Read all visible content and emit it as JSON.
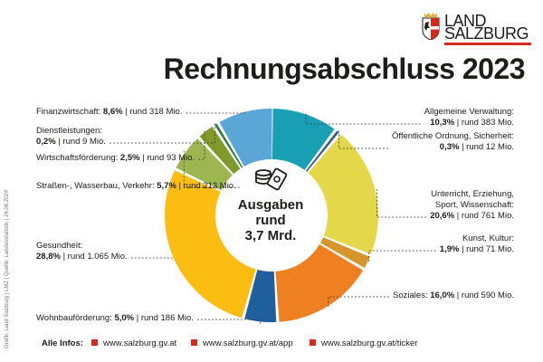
{
  "logo": {
    "line1": "LAND",
    "line2": "SALZBURG"
  },
  "title": "Rechnungsabschluss 2023",
  "center": {
    "line1": "Ausgaben",
    "line2": "rund",
    "line3": "3,7 Mrd."
  },
  "credit": "Grafik: Land Salzburg | LMZ | Quelle: Landesstatistik | 24.06.2024",
  "footer": {
    "title": "Alle Infos:",
    "links": [
      "www.salzburg.gv.at",
      "www.salzburg.gv.at/app",
      "www.salzburg.gv.at/ticker"
    ]
  },
  "colors": {
    "accent": "#d52b1e"
  },
  "chart_data": {
    "type": "pie",
    "title": "Rechnungsabschluss 2023",
    "total_label": "Ausgaben rund 3,7 Mrd.",
    "series": [
      {
        "name": "Allgemeine Verwaltung",
        "name_lines": [
          "Allgemeine Verwaltung:"
        ],
        "pct": 10.3,
        "pct_label": "10,3%",
        "amount": "rund 383 Mio.",
        "color": "#1aa0b4"
      },
      {
        "name": "Öffentliche Ordnung, Sicherheit",
        "name_lines": [
          "Öffentliche Ordnung, Sicherheit:"
        ],
        "pct": 0.3,
        "pct_label": "0,3%",
        "amount": "rund 12 Mio.",
        "color": "#2b5a8a"
      },
      {
        "name": "Unterricht, Erziehung, Sport, Wissenschaft",
        "name_lines": [
          "Unterricht, Erziehung,",
          "Sport, Wissenschaft:"
        ],
        "pct": 20.6,
        "pct_label": "20,6%",
        "amount": "rund 761 Mio.",
        "color": "#e4d84a"
      },
      {
        "name": "Kunst, Kultur",
        "name_lines": [
          "Kunst, Kultur:"
        ],
        "pct": 1.9,
        "pct_label": "1,9%",
        "amount": "rund 71 Mio.",
        "color": "#d4962a"
      },
      {
        "name": "Soziales",
        "name_lines": [
          "Soziales:"
        ],
        "pct": 16.0,
        "pct_label": "16,0%",
        "amount": "rund 590 Mio.",
        "color": "#ee8022"
      },
      {
        "name": "Wohnbauförderung",
        "name_lines": [
          "Wohnbauförderung:"
        ],
        "pct": 5.0,
        "pct_label": "5,0%",
        "amount": "rund 186 Mio.",
        "color": "#1f5f9e"
      },
      {
        "name": "Gesundheit",
        "name_lines": [
          "Gesundheit:"
        ],
        "pct": 28.8,
        "pct_label": "28,8%",
        "amount": "rund 1.065 Mio.",
        "color": "#fbbd12"
      },
      {
        "name": "Straßen-, Wasserbau, Verkehr",
        "name_lines": [
          "Straßen-, Wasserbau, Verkehr:"
        ],
        "pct": 5.7,
        "pct_label": "5,7%",
        "amount": "rund 213 Mio.",
        "color": "#9cb752"
      },
      {
        "name": "Wirtschaftsförderung",
        "name_lines": [
          "Wirtschaftsförderung:"
        ],
        "pct": 2.5,
        "pct_label": "2,5%",
        "amount": "rund 93 Mio.",
        "color": "#7f9a2a"
      },
      {
        "name": "Dienstleistungen",
        "name_lines": [
          "Dienstleistungen:"
        ],
        "pct": 0.2,
        "pct_label": "0,2%",
        "amount": "rund 9 Mio.",
        "color": "#2e7a3a"
      },
      {
        "name": "Finanzwirtschaft",
        "name_lines": [
          "Finanzwirtschaft:"
        ],
        "pct": 8.6,
        "pct_label": "8,6%",
        "amount": "rund 318 Mio.",
        "color": "#5aa6d6"
      }
    ]
  }
}
